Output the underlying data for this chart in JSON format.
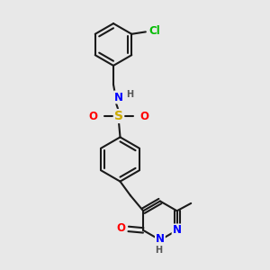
{
  "bg_color": "#e8e8e8",
  "bond_color": "#1a1a1a",
  "bond_width": 1.5,
  "atom_colors": {
    "N": "#0000ff",
    "O": "#ff0000",
    "S": "#ccaa00",
    "Cl": "#00bb00",
    "H": "#555555"
  },
  "font_size": 8.5,
  "fig_width": 3.0,
  "fig_height": 3.0,
  "xlim": [
    0,
    10
  ],
  "ylim": [
    0,
    10
  ]
}
